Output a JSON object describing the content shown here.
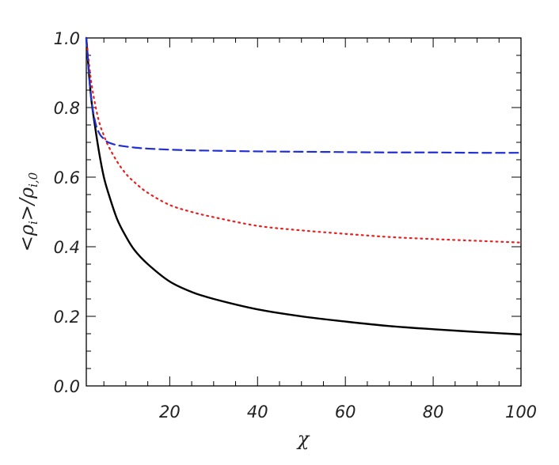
{
  "chart_data": {
    "type": "line",
    "xlabel": "χ",
    "ylabel": {
      "open": "<",
      "rho1": "ρ",
      "sub1": "i",
      "close": ">/",
      "rho2": "ρ",
      "sub2": "i,0"
    },
    "xlim": [
      1,
      100
    ],
    "ylim": [
      0.0,
      1.0
    ],
    "x_ticks": [
      20,
      40,
      60,
      80,
      100
    ],
    "x_tick_labels": [
      "20",
      "40",
      "60",
      "80",
      "100"
    ],
    "y_ticks": [
      0.0,
      0.2,
      0.4,
      0.6,
      0.8,
      1.0
    ],
    "y_tick_labels": [
      "0.0",
      "0.2",
      "0.4",
      "0.6",
      "0.8",
      "1.0"
    ],
    "grid": false,
    "series": [
      {
        "color": "#000000",
        "style": "solid",
        "x": [
          1,
          2,
          3,
          4,
          5,
          6,
          8,
          10,
          12,
          15,
          20,
          25,
          30,
          40,
          50,
          60,
          70,
          80,
          90,
          100
        ],
        "y": [
          1.0,
          0.84,
          0.745,
          0.665,
          0.6,
          0.555,
          0.48,
          0.43,
          0.39,
          0.35,
          0.3,
          0.27,
          0.25,
          0.22,
          0.2,
          0.185,
          0.172,
          0.163,
          0.155,
          0.148
        ]
      },
      {
        "color": "#e8201f",
        "style": "dotted",
        "x": [
          1,
          2,
          3,
          4,
          5,
          6,
          8,
          10,
          12,
          15,
          20,
          25,
          30,
          40,
          50,
          60,
          70,
          80,
          90,
          100
        ],
        "y": [
          1.0,
          0.885,
          0.81,
          0.755,
          0.72,
          0.69,
          0.645,
          0.61,
          0.585,
          0.555,
          0.52,
          0.5,
          0.485,
          0.46,
          0.447,
          0.437,
          0.428,
          0.422,
          0.417,
          0.412
        ]
      },
      {
        "color": "#2030d0",
        "style": "dashed",
        "x": [
          1,
          2,
          3,
          4,
          5,
          6,
          8,
          10,
          12,
          15,
          20,
          25,
          30,
          40,
          50,
          60,
          70,
          80,
          90,
          100
        ],
        "y": [
          1.0,
          0.84,
          0.76,
          0.725,
          0.71,
          0.7,
          0.692,
          0.688,
          0.685,
          0.682,
          0.679,
          0.677,
          0.676,
          0.674,
          0.673,
          0.672,
          0.671,
          0.671,
          0.67,
          0.67
        ]
      }
    ]
  }
}
